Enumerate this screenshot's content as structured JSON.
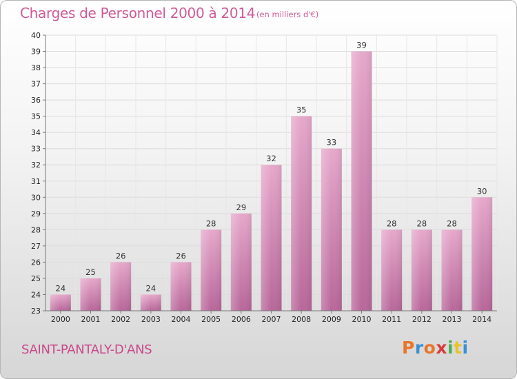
{
  "header": {
    "title": "Charges de Personnel 2000 à 2014",
    "subtitle": "(en milliers d'€)"
  },
  "footer": {
    "commune": "SAINT-PANTALY-D'ANS",
    "logo": {
      "text": "Proxiti",
      "colors": [
        "#e8752a",
        "#3a8fd6",
        "#e8752a",
        "#d93b3b",
        "#4caf50",
        "#e8c32a",
        "#3a8fd6"
      ]
    }
  },
  "chart_data": {
    "type": "bar",
    "title": "Charges de Personnel 2000 à 2014",
    "subtitle": "(en milliers d'€)",
    "categories": [
      "2000",
      "2001",
      "2002",
      "2003",
      "2004",
      "2005",
      "2006",
      "2007",
      "2008",
      "2009",
      "2010",
      "2011",
      "2012",
      "2013",
      "2014"
    ],
    "values": [
      24,
      25,
      26,
      24,
      26,
      28,
      29,
      32,
      35,
      33,
      39,
      28,
      28,
      28,
      30
    ],
    "ylim": [
      23,
      40
    ],
    "yticks": [
      23,
      24,
      25,
      26,
      27,
      28,
      29,
      30,
      31,
      32,
      33,
      34,
      35,
      36,
      37,
      38,
      39,
      40
    ],
    "grid": true,
    "bar_color": "#d37aa9"
  }
}
